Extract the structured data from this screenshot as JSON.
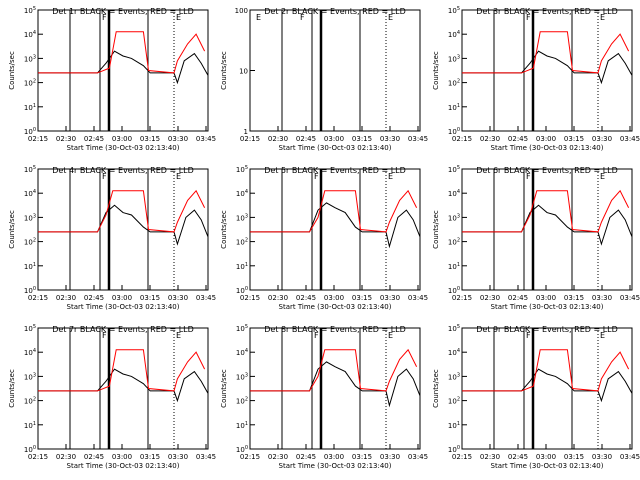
{
  "chart_data": [
    {
      "type": "line",
      "title": "Det 1r BLACK = Events, RED = LLD",
      "ylabel": "Counts/sec",
      "xlabel": "Start Time (30-Oct-03 02:13:40)",
      "x_ticks": [
        "02:15",
        "02:30",
        "02:45",
        "03:00",
        "03:15",
        "03:30",
        "03:45"
      ],
      "yscale": "log",
      "y_ticks": [
        "10^0",
        "10^1",
        "10^2",
        "10^3",
        "10^4",
        "10^5"
      ],
      "markers": [
        "F",
        "E"
      ],
      "series": [
        {
          "color": "#000000"
        },
        {
          "color": "#ff0000"
        }
      ],
      "shape": "A"
    },
    {
      "type": "line",
      "title": "Det 2r BLACK = Events, RED = LLD",
      "ylabel": "Counts/sec",
      "xlabel": "Start Time (30-Oct-03 02:13:40)",
      "x_ticks": [
        "02:15",
        "02:30",
        "02:45",
        "03:00",
        "03:15",
        "03:30",
        "03:45"
      ],
      "yscale": "log",
      "y_ticks": [
        "1",
        "10",
        "100"
      ],
      "markers": [
        "E",
        "F",
        "E"
      ],
      "series": [],
      "shape": "none"
    },
    {
      "type": "line",
      "title": "Det 3r BLACK = Events, RED = LLD",
      "ylabel": "Counts/sec",
      "xlabel": "Start Time (30-Oct-03 02:13:40)",
      "x_ticks": [
        "02:15",
        "02:30",
        "02:45",
        "03:00",
        "03:15",
        "03:30",
        "03:45"
      ],
      "yscale": "log",
      "y_ticks": [
        "10^0",
        "10^1",
        "10^2",
        "10^3",
        "10^4",
        "10^5"
      ],
      "markers": [
        "F",
        "E"
      ],
      "series": [
        {
          "color": "#000000"
        },
        {
          "color": "#ff0000"
        }
      ],
      "shape": "A"
    },
    {
      "type": "line",
      "title": "Det 4r BLACK = Events, RED = LLD",
      "ylabel": "Counts/sec",
      "xlabel": "Start Time (30-Oct-03 02:13:40)",
      "x_ticks": [
        "02:15",
        "02:30",
        "02:45",
        "03:00",
        "03:15",
        "03:30",
        "03:45"
      ],
      "yscale": "log",
      "y_ticks": [
        "10^0",
        "10^1",
        "10^2",
        "10^3",
        "10^4",
        "10^5"
      ],
      "markers": [
        "F",
        "E"
      ],
      "series": [
        {
          "color": "#000000"
        },
        {
          "color": "#ff0000"
        }
      ],
      "shape": "B"
    },
    {
      "type": "line",
      "title": "Det 5r BLACK = Events, RED = LLD",
      "ylabel": "Counts/sec",
      "xlabel": "Start Time (30-Oct-03 02:13:40)",
      "x_ticks": [
        "02:15",
        "02:30",
        "02:45",
        "03:00",
        "03:15",
        "03:30",
        "03:45"
      ],
      "yscale": "log",
      "y_ticks": [
        "10^0",
        "10^1",
        "10^2",
        "10^3",
        "10^4",
        "10^5"
      ],
      "markers": [
        "F",
        "E"
      ],
      "series": [
        {
          "color": "#000000"
        },
        {
          "color": "#ff0000"
        }
      ],
      "shape": "C"
    },
    {
      "type": "line",
      "title": "Det 6r BLACK = Events, RED = LLD",
      "ylabel": "Counts/sec",
      "xlabel": "Start Time (30-Oct-03 02:13:40)",
      "x_ticks": [
        "02:15",
        "02:30",
        "02:45",
        "03:00",
        "03:15",
        "03:30",
        "03:45"
      ],
      "yscale": "log",
      "y_ticks": [
        "10^0",
        "10^1",
        "10^2",
        "10^3",
        "10^4",
        "10^5"
      ],
      "markers": [
        "F",
        "E"
      ],
      "series": [
        {
          "color": "#000000"
        },
        {
          "color": "#ff0000"
        }
      ],
      "shape": "B"
    },
    {
      "type": "line",
      "title": "Det 7r BLACK = Events, RED = LLD",
      "ylabel": "Counts/sec",
      "xlabel": "Start Time (30-Oct-03 02:13:40)",
      "x_ticks": [
        "02:15",
        "02:30",
        "02:45",
        "03:00",
        "03:15",
        "03:30",
        "03:45"
      ],
      "yscale": "log",
      "y_ticks": [
        "10^0",
        "10^1",
        "10^2",
        "10^3",
        "10^4",
        "10^5"
      ],
      "markers": [
        "F",
        "E"
      ],
      "series": [
        {
          "color": "#000000"
        },
        {
          "color": "#ff0000"
        }
      ],
      "shape": "A"
    },
    {
      "type": "line",
      "title": "Det 8r BLACK = Events, RED = LLD",
      "ylabel": "Counts/sec",
      "xlabel": "Start Time (30-Oct-03 02:13:40)",
      "x_ticks": [
        "02:15",
        "02:30",
        "02:45",
        "03:00",
        "03:15",
        "03:30",
        "03:45"
      ],
      "yscale": "log",
      "y_ticks": [
        "10^0",
        "10^1",
        "10^2",
        "10^3",
        "10^4",
        "10^5"
      ],
      "markers": [
        "F",
        "E"
      ],
      "series": [
        {
          "color": "#000000"
        },
        {
          "color": "#ff0000"
        }
      ],
      "shape": "C"
    },
    {
      "type": "line",
      "title": "Det 9r BLACK = Events, RED = LLD",
      "ylabel": "Counts/sec",
      "xlabel": "Start Time (30-Oct-03 02:13:40)",
      "x_ticks": [
        "02:15",
        "02:30",
        "02:45",
        "03:00",
        "03:15",
        "03:30",
        "03:45"
      ],
      "yscale": "log",
      "y_ticks": [
        "10^0",
        "10^1",
        "10^2",
        "10^3",
        "10^4",
        "10^5"
      ],
      "markers": [
        "F",
        "E"
      ],
      "series": [
        {
          "color": "#000000"
        },
        {
          "color": "#ff0000"
        }
      ],
      "shape": "A"
    }
  ]
}
